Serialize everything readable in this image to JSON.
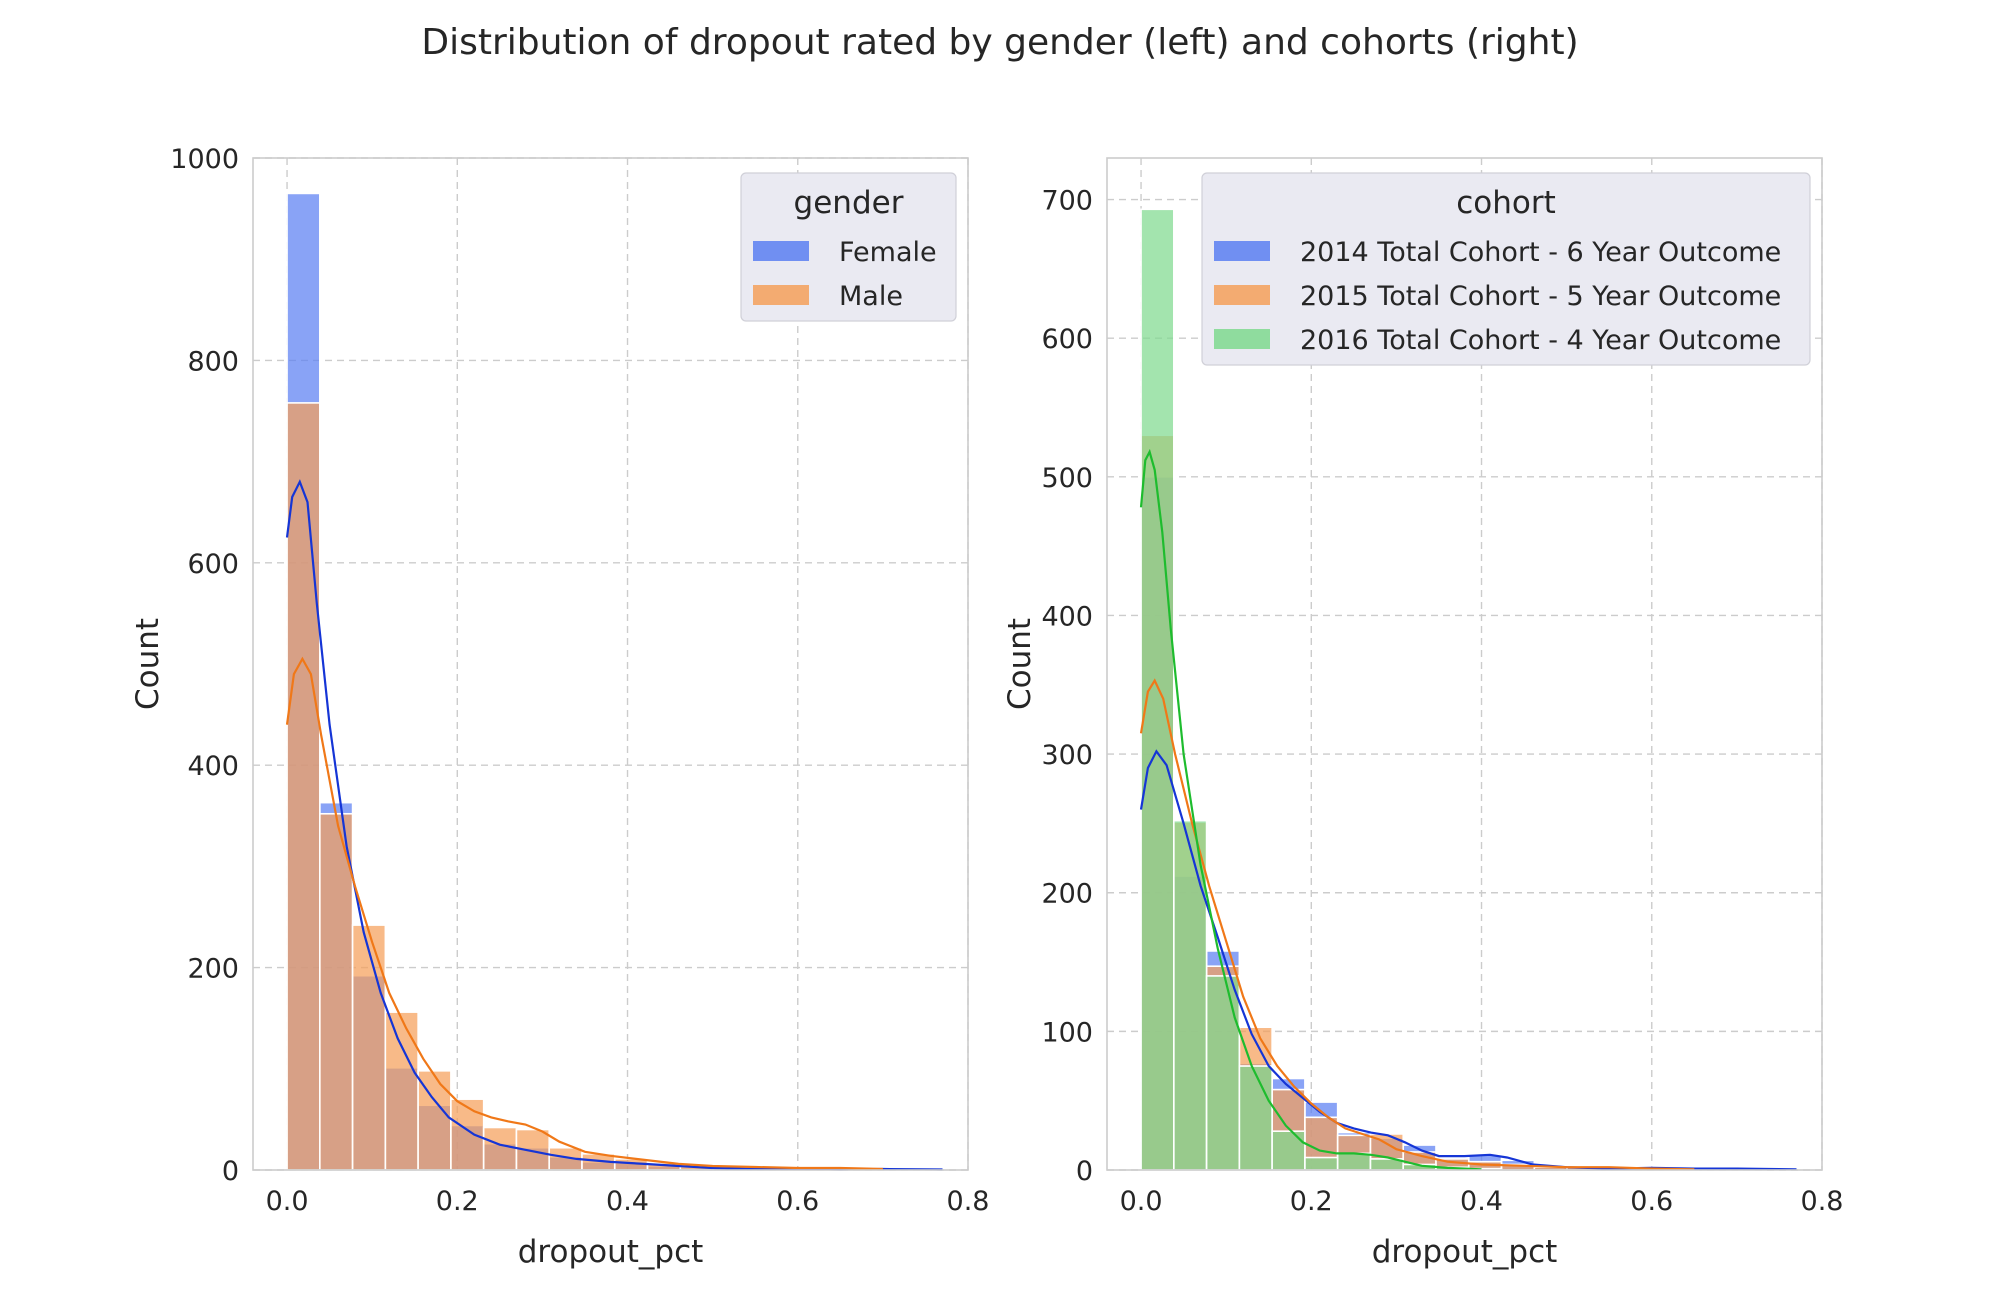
{
  "figure": {
    "title": "Distribution of dropout rated by gender (left) and cohorts (right)"
  },
  "chart_data": [
    {
      "type": "histogram",
      "panel": "left",
      "xlabel": "dropout_pct",
      "ylabel": "Count",
      "xlim": [
        -0.04,
        0.8
      ],
      "ylim": [
        0,
        1000
      ],
      "xticks": [
        "0.0",
        "0.2",
        "0.4",
        "0.6",
        "0.8"
      ],
      "yticks": [
        "0",
        "200",
        "400",
        "600",
        "800",
        "1000"
      ],
      "grid": true,
      "legend": {
        "title": "gender",
        "position": "top-right"
      },
      "bin_edges": [
        0.0,
        0.0385,
        0.077,
        0.1155,
        0.154,
        0.1925,
        0.231,
        0.2695,
        0.308,
        0.3465,
        0.385,
        0.4235,
        0.462,
        0.5005,
        0.539,
        0.5775,
        0.616,
        0.6545,
        0.693,
        0.7315,
        0.77
      ],
      "series": [
        {
          "name": "Female",
          "color": "#5b7ff2",
          "kde_color": "#1535d6",
          "values": [
            965,
            363,
            192,
            101,
            64,
            44,
            26,
            22,
            13,
            8,
            7,
            4,
            2,
            2,
            1,
            1,
            1,
            0,
            1,
            1
          ],
          "kde": [
            [
              0.0,
              625
            ],
            [
              0.006,
              665
            ],
            [
              0.015,
              680
            ],
            [
              0.024,
              660
            ],
            [
              0.035,
              560
            ],
            [
              0.05,
              440
            ],
            [
              0.07,
              320
            ],
            [
              0.09,
              235
            ],
            [
              0.11,
              175
            ],
            [
              0.13,
              130
            ],
            [
              0.15,
              96
            ],
            [
              0.17,
              72
            ],
            [
              0.19,
              52
            ],
            [
              0.22,
              35
            ],
            [
              0.25,
              25
            ],
            [
              0.28,
              20
            ],
            [
              0.31,
              15
            ],
            [
              0.34,
              11
            ],
            [
              0.38,
              8
            ],
            [
              0.42,
              6
            ],
            [
              0.46,
              4
            ],
            [
              0.5,
              2
            ],
            [
              0.55,
              1
            ],
            [
              0.6,
              1
            ],
            [
              0.65,
              0.5
            ],
            [
              0.7,
              1
            ],
            [
              0.77,
              0.5
            ]
          ]
        },
        {
          "name": "Male",
          "color": "#f5a05a",
          "kde_color": "#f07818",
          "values": [
            758,
            352,
            242,
            156,
            98,
            70,
            42,
            40,
            22,
            16,
            11,
            7,
            4,
            3,
            2,
            2,
            1,
            1,
            0,
            0
          ],
          "kde": [
            [
              0.0,
              440
            ],
            [
              0.008,
              490
            ],
            [
              0.018,
              505
            ],
            [
              0.028,
              490
            ],
            [
              0.04,
              430
            ],
            [
              0.06,
              340
            ],
            [
              0.08,
              280
            ],
            [
              0.1,
              225
            ],
            [
              0.12,
              175
            ],
            [
              0.14,
              140
            ],
            [
              0.16,
              110
            ],
            [
              0.18,
              85
            ],
            [
              0.2,
              68
            ],
            [
              0.22,
              58
            ],
            [
              0.24,
              52
            ],
            [
              0.26,
              48
            ],
            [
              0.28,
              45
            ],
            [
              0.3,
              38
            ],
            [
              0.32,
              28
            ],
            [
              0.35,
              18
            ],
            [
              0.38,
              14
            ],
            [
              0.42,
              10
            ],
            [
              0.46,
              6
            ],
            [
              0.5,
              4
            ],
            [
              0.55,
              3
            ],
            [
              0.6,
              2
            ],
            [
              0.65,
              2
            ],
            [
              0.7,
              1
            ]
          ]
        }
      ]
    },
    {
      "type": "histogram",
      "panel": "right",
      "xlabel": "dropout_pct",
      "ylabel": "Count",
      "xlim": [
        -0.04,
        0.8
      ],
      "ylim": [
        0,
        730
      ],
      "xticks": [
        "0.0",
        "0.2",
        "0.4",
        "0.6",
        "0.8"
      ],
      "yticks": [
        "0",
        "100",
        "200",
        "300",
        "400",
        "500",
        "600",
        "700"
      ],
      "grid": true,
      "legend": {
        "title": "cohort",
        "position": "top-right"
      },
      "bin_edges": [
        0.0,
        0.0385,
        0.077,
        0.1155,
        0.154,
        0.1925,
        0.231,
        0.2695,
        0.308,
        0.3465,
        0.385,
        0.4235,
        0.462,
        0.5005,
        0.539,
        0.5775,
        0.616,
        0.6545,
        0.693,
        0.7315,
        0.77
      ],
      "series": [
        {
          "name": "2014 Total Cohort - 6 Year Outcome",
          "color": "#5b7ff2",
          "kde_color": "#1535d6",
          "values": [
            500,
            212,
            158,
            77,
            66,
            49,
            27,
            23,
            18,
            9,
            11,
            7,
            3,
            2,
            1,
            1,
            1,
            1,
            1,
            0
          ],
          "kde": [
            [
              0.0,
              260
            ],
            [
              0.008,
              290
            ],
            [
              0.018,
              302
            ],
            [
              0.03,
              292
            ],
            [
              0.05,
              250
            ],
            [
              0.07,
              205
            ],
            [
              0.09,
              168
            ],
            [
              0.11,
              130
            ],
            [
              0.13,
              98
            ],
            [
              0.15,
              75
            ],
            [
              0.17,
              62
            ],
            [
              0.19,
              52
            ],
            [
              0.21,
              42
            ],
            [
              0.23,
              34
            ],
            [
              0.25,
              30
            ],
            [
              0.27,
              27
            ],
            [
              0.29,
              25
            ],
            [
              0.31,
              20
            ],
            [
              0.33,
              14
            ],
            [
              0.35,
              10
            ],
            [
              0.38,
              10
            ],
            [
              0.41,
              11
            ],
            [
              0.43,
              9
            ],
            [
              0.46,
              4
            ],
            [
              0.5,
              2
            ],
            [
              0.55,
              1
            ],
            [
              0.6,
              1.5
            ],
            [
              0.65,
              1
            ],
            [
              0.7,
              1
            ],
            [
              0.77,
              0.5
            ]
          ]
        },
        {
          "name": "2015 Total Cohort - 5 Year Outcome",
          "color": "#f5a05a",
          "kde_color": "#f07818",
          "values": [
            530,
            251,
            147,
            103,
            58,
            38,
            25,
            26,
            13,
            8,
            6,
            4,
            2,
            2,
            1,
            2,
            1,
            0,
            0,
            0
          ],
          "kde": [
            [
              0.0,
              315
            ],
            [
              0.008,
              345
            ],
            [
              0.016,
              353
            ],
            [
              0.026,
              340
            ],
            [
              0.04,
              300
            ],
            [
              0.06,
              250
            ],
            [
              0.08,
              205
            ],
            [
              0.1,
              165
            ],
            [
              0.12,
              125
            ],
            [
              0.14,
              95
            ],
            [
              0.16,
              75
            ],
            [
              0.18,
              60
            ],
            [
              0.2,
              48
            ],
            [
              0.22,
              38
            ],
            [
              0.24,
              30
            ],
            [
              0.26,
              26
            ],
            [
              0.28,
              22
            ],
            [
              0.3,
              15
            ],
            [
              0.33,
              10
            ],
            [
              0.36,
              6
            ],
            [
              0.4,
              4
            ],
            [
              0.45,
              3
            ],
            [
              0.5,
              2
            ],
            [
              0.55,
              2
            ],
            [
              0.6,
              1
            ],
            [
              0.65,
              0.5
            ]
          ]
        },
        {
          "name": "2016 Total Cohort - 4 Year Outcome",
          "color": "#7fd98f",
          "kde_color": "#1ebc2e",
          "values": [
            693,
            252,
            140,
            75,
            28,
            9,
            12,
            8,
            4,
            2,
            1,
            0,
            0,
            0,
            0,
            0,
            0,
            0,
            0,
            0
          ],
          "kde": [
            [
              0.0,
              478
            ],
            [
              0.005,
              512
            ],
            [
              0.01,
              518
            ],
            [
              0.016,
              505
            ],
            [
              0.025,
              460
            ],
            [
              0.035,
              390
            ],
            [
              0.05,
              300
            ],
            [
              0.07,
              220
            ],
            [
              0.09,
              160
            ],
            [
              0.11,
              110
            ],
            [
              0.13,
              75
            ],
            [
              0.15,
              50
            ],
            [
              0.17,
              32
            ],
            [
              0.19,
              20
            ],
            [
              0.21,
              14
            ],
            [
              0.23,
              12
            ],
            [
              0.25,
              12
            ],
            [
              0.27,
              11
            ],
            [
              0.29,
              9
            ],
            [
              0.31,
              6
            ],
            [
              0.33,
              3
            ],
            [
              0.36,
              1.5
            ],
            [
              0.4,
              0.5
            ]
          ]
        }
      ]
    }
  ]
}
